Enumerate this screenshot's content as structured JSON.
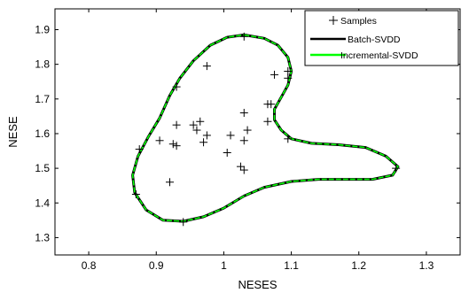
{
  "chart_data": {
    "type": "scatter",
    "title": "",
    "xlabel": "NESES",
    "ylabel": "NESE",
    "xlim": [
      0.75,
      1.35
    ],
    "ylim": [
      1.25,
      1.96
    ],
    "xticks": [
      "0.8",
      "0.9",
      "1",
      "1.1",
      "1.2",
      "1.3"
    ],
    "xtick_values": [
      0.8,
      0.9,
      1.0,
      1.1,
      1.2,
      1.3
    ],
    "yticks": [
      "1.3",
      "1.4",
      "1.5",
      "1.6",
      "1.7",
      "1.8",
      "1.9"
    ],
    "ytick_values": [
      1.3,
      1.4,
      1.5,
      1.6,
      1.7,
      1.8,
      1.9
    ],
    "grid": false,
    "legend_position": "top-right",
    "legend": {
      "samples": "Samples",
      "batch": "Batch-SVDD",
      "incremental": "Incremental-SVDD"
    },
    "colors": {
      "samples": "#000000",
      "batch": "#000000",
      "incremental": "#00ff00"
    },
    "samples": [
      [
        1.03,
        1.88
      ],
      [
        0.975,
        1.795
      ],
      [
        1.075,
        1.77
      ],
      [
        1.095,
        1.78
      ],
      [
        1.095,
        1.76
      ],
      [
        0.93,
        1.735
      ],
      [
        1.065,
        1.685
      ],
      [
        1.07,
        1.685
      ],
      [
        1.065,
        1.635
      ],
      [
        1.03,
        1.66
      ],
      [
        0.965,
        1.635
      ],
      [
        0.955,
        1.625
      ],
      [
        0.93,
        1.625
      ],
      [
        0.96,
        1.61
      ],
      [
        1.035,
        1.61
      ],
      [
        0.975,
        1.595
      ],
      [
        1.01,
        1.595
      ],
      [
        0.925,
        1.57
      ],
      [
        0.93,
        1.565
      ],
      [
        0.97,
        1.575
      ],
      [
        1.03,
        1.58
      ],
      [
        0.905,
        1.58
      ],
      [
        1.005,
        1.545
      ],
      [
        0.875,
        1.555
      ],
      [
        1.025,
        1.505
      ],
      [
        1.03,
        1.495
      ],
      [
        1.095,
        1.585
      ],
      [
        0.92,
        1.46
      ],
      [
        0.87,
        1.425
      ],
      [
        0.94,
        1.345
      ],
      [
        1.255,
        1.5
      ]
    ],
    "boundary": [
      [
        1.03,
        1.885
      ],
      [
        1.06,
        1.875
      ],
      [
        1.08,
        1.855
      ],
      [
        1.095,
        1.82
      ],
      [
        1.1,
        1.78
      ],
      [
        1.095,
        1.74
      ],
      [
        1.085,
        1.705
      ],
      [
        1.075,
        1.67
      ],
      [
        1.075,
        1.64
      ],
      [
        1.085,
        1.61
      ],
      [
        1.1,
        1.585
      ],
      [
        1.13,
        1.572
      ],
      [
        1.17,
        1.568
      ],
      [
        1.21,
        1.56
      ],
      [
        1.24,
        1.535
      ],
      [
        1.258,
        1.505
      ],
      [
        1.25,
        1.48
      ],
      [
        1.22,
        1.468
      ],
      [
        1.18,
        1.468
      ],
      [
        1.14,
        1.468
      ],
      [
        1.1,
        1.462
      ],
      [
        1.06,
        1.445
      ],
      [
        1.03,
        1.42
      ],
      [
        1.0,
        1.385
      ],
      [
        0.97,
        1.36
      ],
      [
        0.94,
        1.347
      ],
      [
        0.91,
        1.35
      ],
      [
        0.885,
        1.38
      ],
      [
        0.868,
        1.43
      ],
      [
        0.865,
        1.48
      ],
      [
        0.873,
        1.535
      ],
      [
        0.888,
        1.59
      ],
      [
        0.905,
        1.645
      ],
      [
        0.92,
        1.71
      ],
      [
        0.935,
        1.76
      ],
      [
        0.955,
        1.81
      ],
      [
        0.98,
        1.855
      ],
      [
        1.005,
        1.878
      ],
      [
        1.03,
        1.885
      ]
    ]
  }
}
